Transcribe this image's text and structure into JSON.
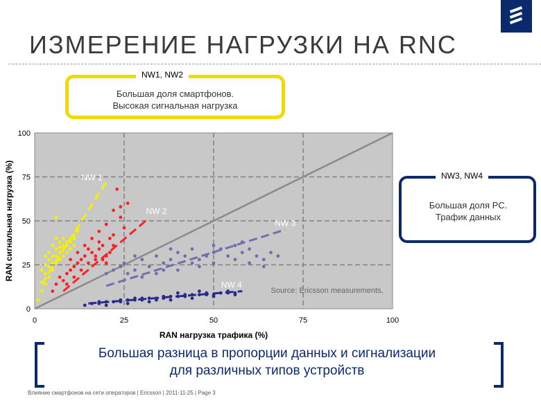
{
  "header": {
    "title": "ИЗМЕРЕНИЕ НАГРУЗКИ НА RNC",
    "logo_icon": "ericsson-logo-icon"
  },
  "callouts": [
    {
      "tag": "NW1, NW2",
      "line1": "Большая доля смартфонов.",
      "line2": "Высокая сигнальная нагрузка",
      "color": "#f2d900"
    },
    {
      "tag": "NW3, NW4",
      "line1": "Большая доля PC.",
      "line2": "Трафик данных",
      "color": "#0b2a6e"
    }
  ],
  "conclusion": {
    "line1": "Большая разница в пропорции данных и сигнализации",
    "line2": "для различных типов устройств"
  },
  "footer": "Влияние смартфонов на сети операторов  |  Ericsson  |  2011-11-25  |  Page 3",
  "chart_data": {
    "type": "scatter",
    "xlabel": "RAN нагрузка трафика (%)",
    "ylabel": "RAN сигнальная нагрузка (%)",
    "xlim": [
      0,
      100
    ],
    "ylim": [
      0,
      100
    ],
    "xticks": [
      0,
      25,
      50,
      75,
      100
    ],
    "yticks": [
      0,
      25,
      50,
      75,
      100
    ],
    "grid": true,
    "annotation": "Source: Ericsson measurements,",
    "reference_line": {
      "from": [
        0,
        0
      ],
      "to": [
        100,
        100
      ],
      "color": "#8a8a8a"
    },
    "series": [
      {
        "name": "NW 1",
        "color": "#f5f000",
        "points": [
          [
            1,
            5
          ],
          [
            2,
            10
          ],
          [
            2,
            15
          ],
          [
            3,
            14
          ],
          [
            3,
            20
          ],
          [
            3,
            25
          ],
          [
            4,
            18
          ],
          [
            4,
            28
          ],
          [
            4,
            32
          ],
          [
            5,
            22
          ],
          [
            5,
            30
          ],
          [
            5,
            36
          ],
          [
            6,
            26
          ],
          [
            6,
            34
          ],
          [
            6,
            40
          ],
          [
            7,
            28
          ],
          [
            7,
            35
          ],
          [
            7,
            38
          ],
          [
            8,
            30
          ],
          [
            8,
            36
          ],
          [
            8,
            40
          ],
          [
            9,
            32
          ],
          [
            9,
            38
          ],
          [
            10,
            34
          ],
          [
            10,
            40
          ],
          [
            11,
            36
          ],
          [
            11,
            42
          ],
          [
            12,
            44
          ],
          [
            6,
            52
          ],
          [
            2,
            22
          ],
          [
            3,
            30
          ],
          [
            4,
            24
          ],
          [
            5,
            26
          ],
          [
            7,
            32
          ],
          [
            9,
            36
          ],
          [
            10,
            38
          ],
          [
            12,
            46
          ],
          [
            11,
            40
          ],
          [
            8,
            34
          ],
          [
            6,
            30
          ]
        ],
        "trend": [
          [
            2,
            14
          ],
          [
            20,
            72
          ]
        ]
      },
      {
        "name": "NW 2",
        "color": "#ff2020",
        "points": [
          [
            5,
            10
          ],
          [
            6,
            14
          ],
          [
            7,
            18
          ],
          [
            8,
            16
          ],
          [
            9,
            20
          ],
          [
            10,
            22
          ],
          [
            11,
            24
          ],
          [
            12,
            26
          ],
          [
            13,
            28
          ],
          [
            14,
            30
          ],
          [
            15,
            26
          ],
          [
            16,
            32
          ],
          [
            17,
            30
          ],
          [
            18,
            34
          ],
          [
            19,
            28
          ],
          [
            20,
            30
          ],
          [
            21,
            32
          ],
          [
            22,
            36
          ],
          [
            10,
            28
          ],
          [
            12,
            32
          ],
          [
            14,
            36
          ],
          [
            16,
            40
          ],
          [
            18,
            44
          ],
          [
            20,
            48
          ],
          [
            22,
            56
          ],
          [
            24,
            58
          ],
          [
            26,
            60
          ],
          [
            23,
            68
          ],
          [
            18,
            38
          ],
          [
            15,
            34
          ],
          [
            13,
            22
          ],
          [
            11,
            18
          ],
          [
            9,
            14
          ],
          [
            20,
            26
          ],
          [
            17,
            28
          ],
          [
            22,
            42
          ],
          [
            25,
            46
          ],
          [
            19,
            36
          ],
          [
            24,
            52
          ],
          [
            21,
            40
          ]
        ],
        "trend": [
          [
            8,
            10
          ],
          [
            31,
            50
          ]
        ]
      },
      {
        "name": "NW 3",
        "color": "#6e6eb0",
        "points": [
          [
            20,
            20
          ],
          [
            22,
            22
          ],
          [
            24,
            24
          ],
          [
            25,
            26
          ],
          [
            26,
            20
          ],
          [
            28,
            22
          ],
          [
            30,
            28
          ],
          [
            32,
            24
          ],
          [
            34,
            30
          ],
          [
            36,
            26
          ],
          [
            38,
            28
          ],
          [
            40,
            32
          ],
          [
            42,
            30
          ],
          [
            44,
            34
          ],
          [
            46,
            28
          ],
          [
            48,
            30
          ],
          [
            50,
            32
          ],
          [
            52,
            34
          ],
          [
            54,
            30
          ],
          [
            56,
            36
          ],
          [
            58,
            32
          ],
          [
            60,
            34
          ],
          [
            62,
            30
          ],
          [
            64,
            28
          ],
          [
            66,
            32
          ],
          [
            68,
            30
          ],
          [
            30,
            18
          ],
          [
            34,
            20
          ],
          [
            40,
            22
          ],
          [
            46,
            24
          ],
          [
            50,
            26
          ],
          [
            56,
            28
          ],
          [
            60,
            26
          ],
          [
            64,
            24
          ],
          [
            28,
            30
          ],
          [
            38,
            34
          ],
          [
            50,
            36
          ],
          [
            58,
            38
          ],
          [
            44,
            26
          ],
          [
            36,
            22
          ]
        ],
        "trend": [
          [
            20,
            13
          ],
          [
            70,
            45
          ]
        ]
      },
      {
        "name": "NW 4",
        "color": "#2a2a8e",
        "points": [
          [
            14,
            2
          ],
          [
            16,
            3
          ],
          [
            18,
            3
          ],
          [
            20,
            4
          ],
          [
            22,
            4
          ],
          [
            24,
            4
          ],
          [
            26,
            5
          ],
          [
            28,
            5
          ],
          [
            30,
            5
          ],
          [
            32,
            6
          ],
          [
            34,
            6
          ],
          [
            36,
            6
          ],
          [
            38,
            7
          ],
          [
            40,
            7
          ],
          [
            42,
            7
          ],
          [
            44,
            8
          ],
          [
            46,
            8
          ],
          [
            48,
            8
          ],
          [
            50,
            8
          ],
          [
            52,
            9
          ],
          [
            54,
            9
          ],
          [
            56,
            9
          ],
          [
            18,
            4
          ],
          [
            24,
            5
          ],
          [
            30,
            6
          ],
          [
            36,
            7
          ],
          [
            42,
            8
          ],
          [
            48,
            9
          ],
          [
            54,
            10
          ],
          [
            20,
            2
          ],
          [
            26,
            3
          ],
          [
            32,
            4
          ],
          [
            38,
            5
          ],
          [
            44,
            6
          ],
          [
            50,
            7
          ],
          [
            56,
            8
          ],
          [
            28,
            6
          ],
          [
            40,
            9
          ],
          [
            46,
            10
          ],
          [
            34,
            5
          ]
        ],
        "trend": [
          [
            15,
            3
          ],
          [
            58,
            10
          ]
        ]
      }
    ]
  }
}
